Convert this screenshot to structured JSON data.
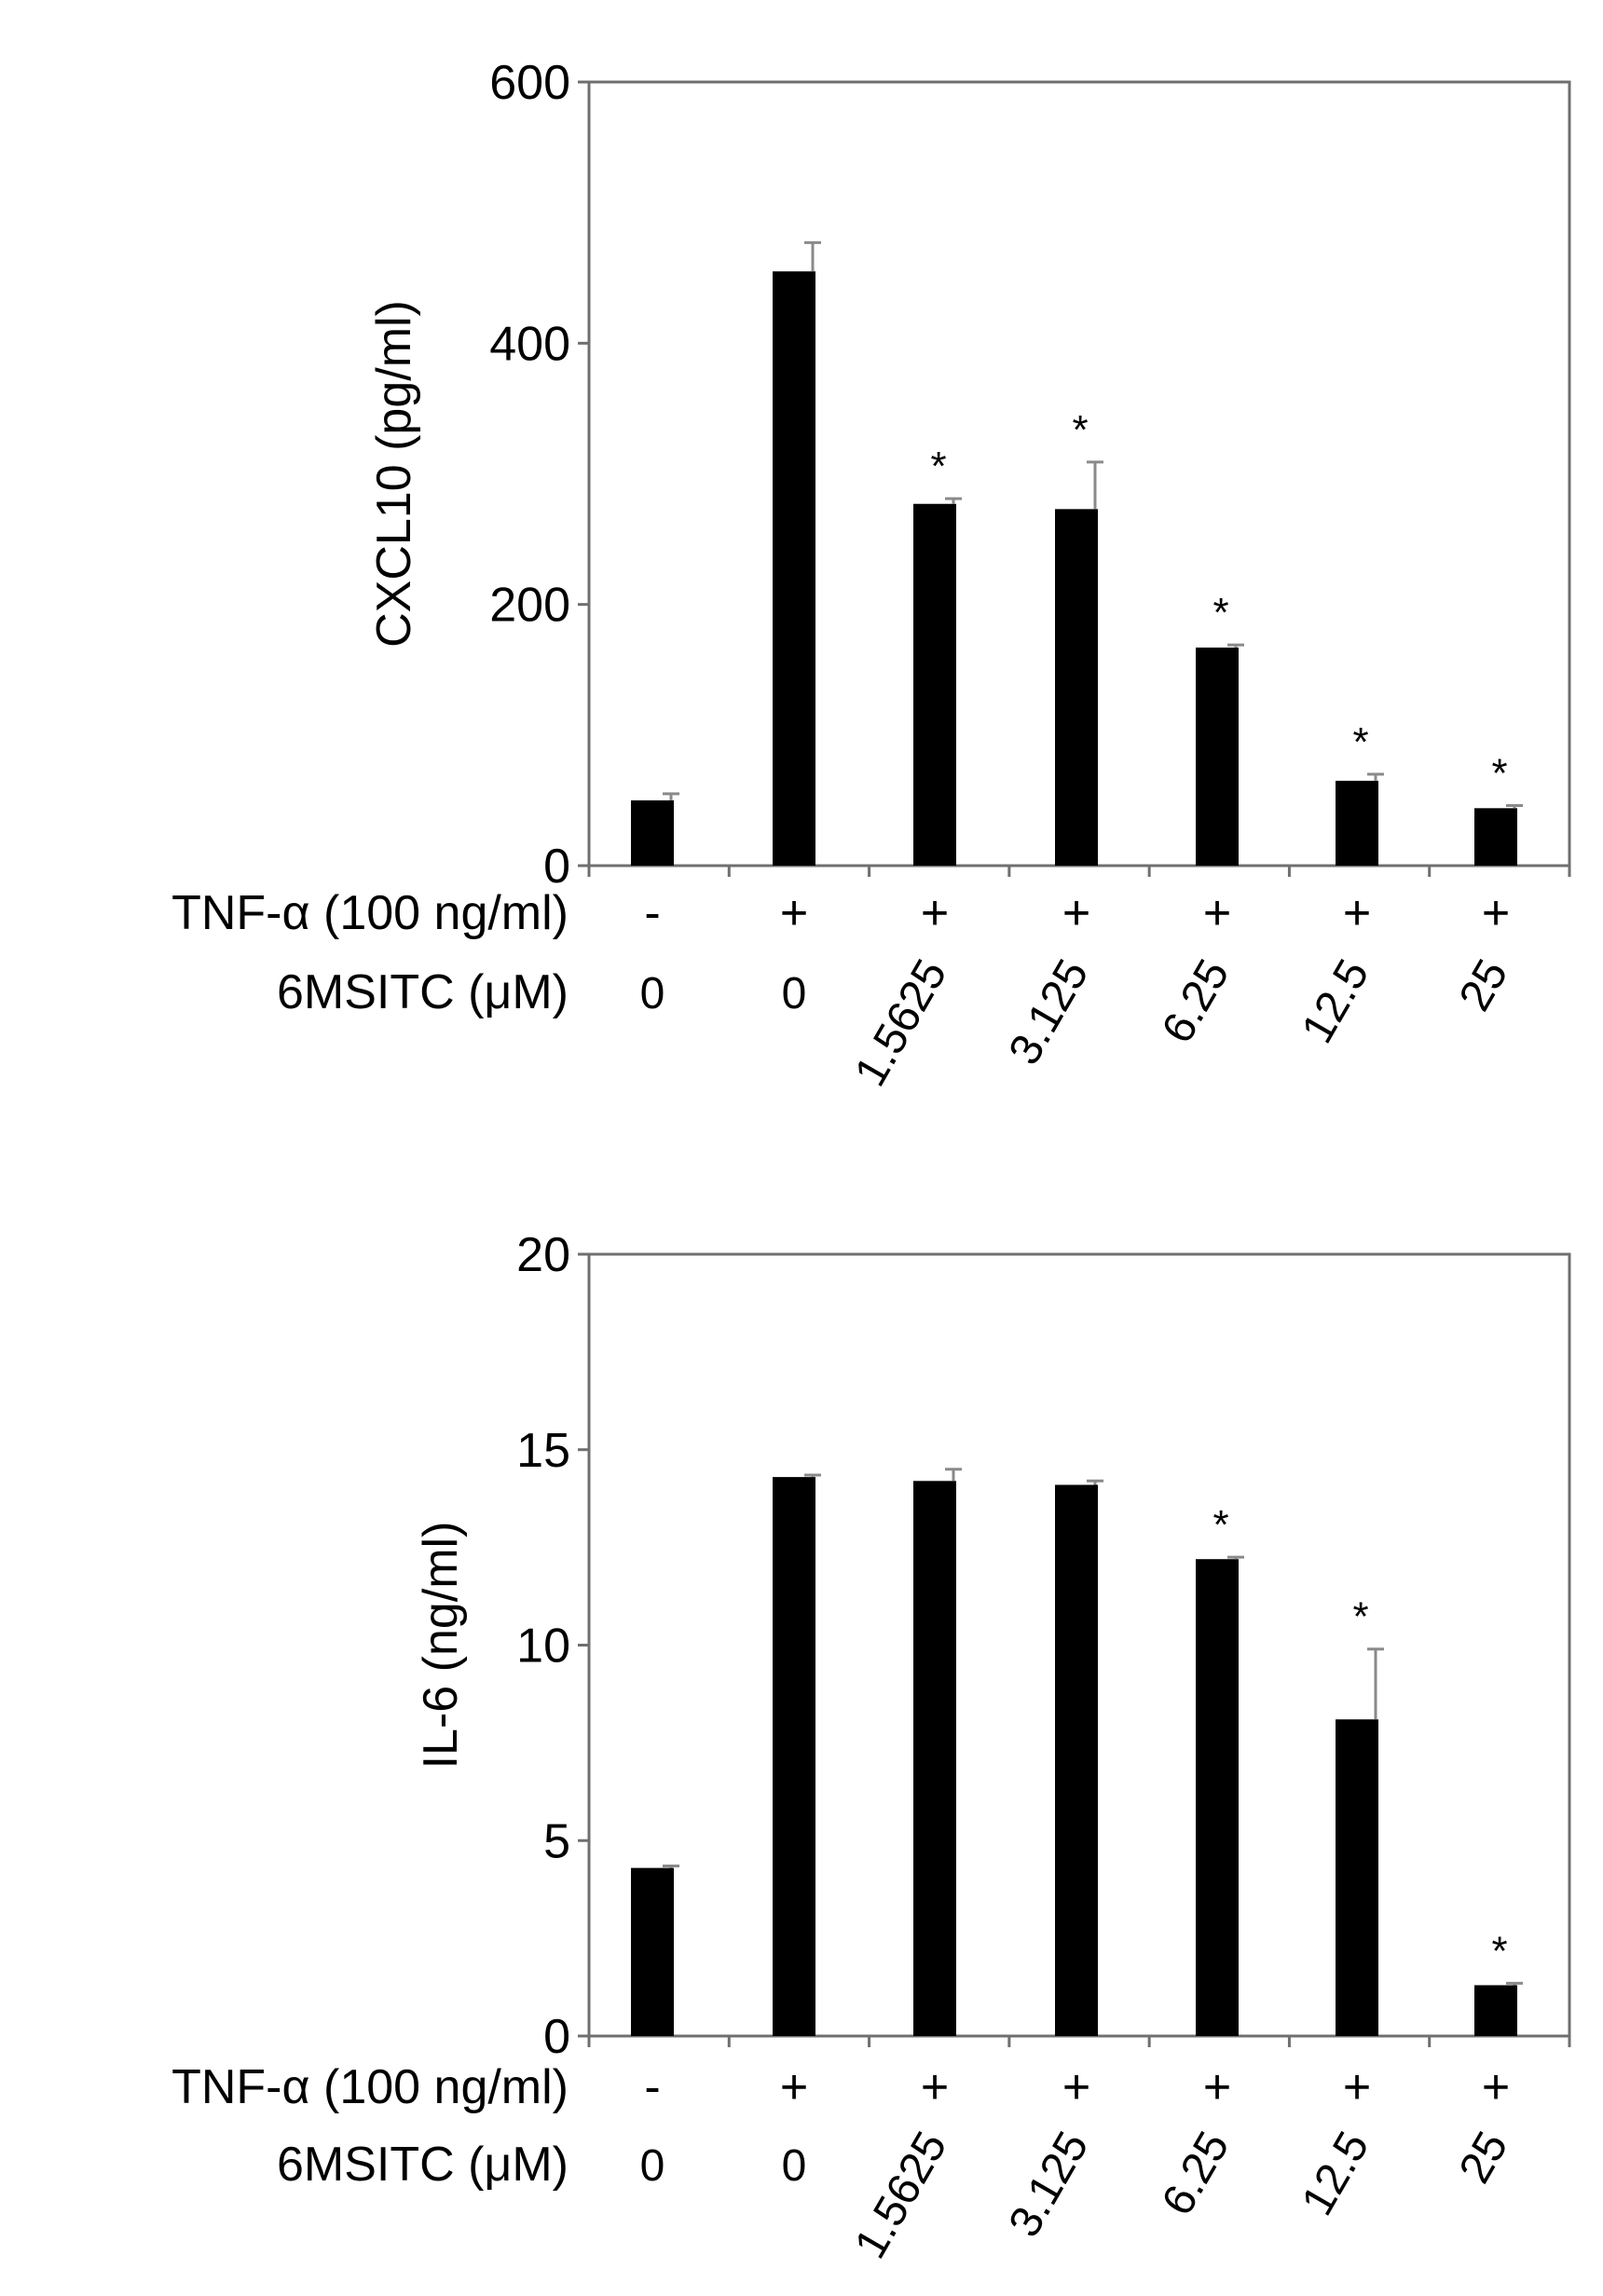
{
  "chart_data": [
    {
      "type": "bar",
      "ylabel": "CXCL10 (pg/ml)",
      "ylim": [
        0,
        600
      ],
      "yticks": [
        0,
        200,
        400,
        600
      ],
      "tnf_label": "TNF-α (100 ng/ml)",
      "msitc_label": "6MSITC (μM)",
      "tnf": [
        "-",
        "+",
        "+",
        "+",
        "+",
        "+",
        "+"
      ],
      "msitc": [
        "0",
        "0",
        "1.5625",
        "3.125",
        "6.25",
        "12.5",
        "25"
      ],
      "values": [
        50,
        455,
        277,
        273,
        167,
        65,
        44
      ],
      "errors": [
        5,
        22,
        4,
        36,
        2,
        5,
        2
      ],
      "significant": [
        false,
        false,
        true,
        true,
        true,
        true,
        true
      ],
      "significance_marker": "*",
      "grid": false
    },
    {
      "type": "bar",
      "ylabel": "IL-6 (ng/ml)",
      "ylim": [
        0,
        20
      ],
      "yticks": [
        0,
        5,
        10,
        15,
        20
      ],
      "tnf_label": "TNF-α (100 ng/ml)",
      "msitc_label": "6MSITC (μM)",
      "tnf": [
        "-",
        "+",
        "+",
        "+",
        "+",
        "+",
        "+"
      ],
      "msitc": [
        "0",
        "0",
        "1.5625",
        "3.125",
        "6.25",
        "12.5",
        "25"
      ],
      "values": [
        4.3,
        14.3,
        14.2,
        14.1,
        12.2,
        8.1,
        1.3
      ],
      "errors": [
        0.05,
        0.05,
        0.3,
        0.1,
        0.05,
        1.8,
        0.05
      ],
      "significant": [
        false,
        false,
        false,
        false,
        true,
        true,
        true
      ],
      "significance_marker": "*",
      "grid": false
    }
  ]
}
